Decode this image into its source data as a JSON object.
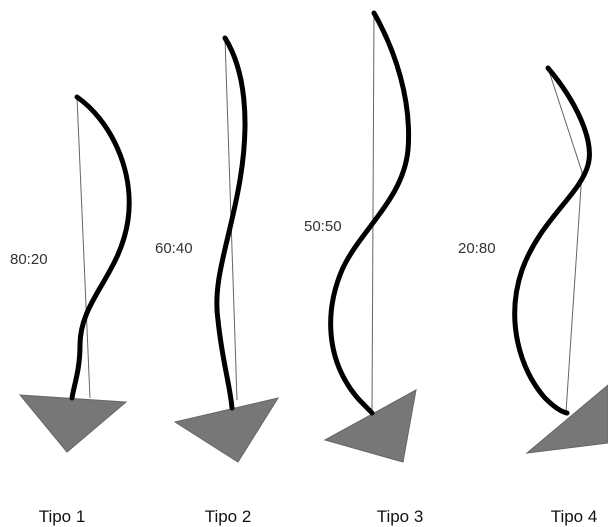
{
  "figures": [
    {
      "ratio": "80:20",
      "label": "Tipo 1"
    },
    {
      "ratio": "60:40",
      "label": "Tipo 2"
    },
    {
      "ratio": "50:50",
      "label": "Tipo 3"
    },
    {
      "ratio": "20:80",
      "label": "Tipo 4"
    }
  ]
}
